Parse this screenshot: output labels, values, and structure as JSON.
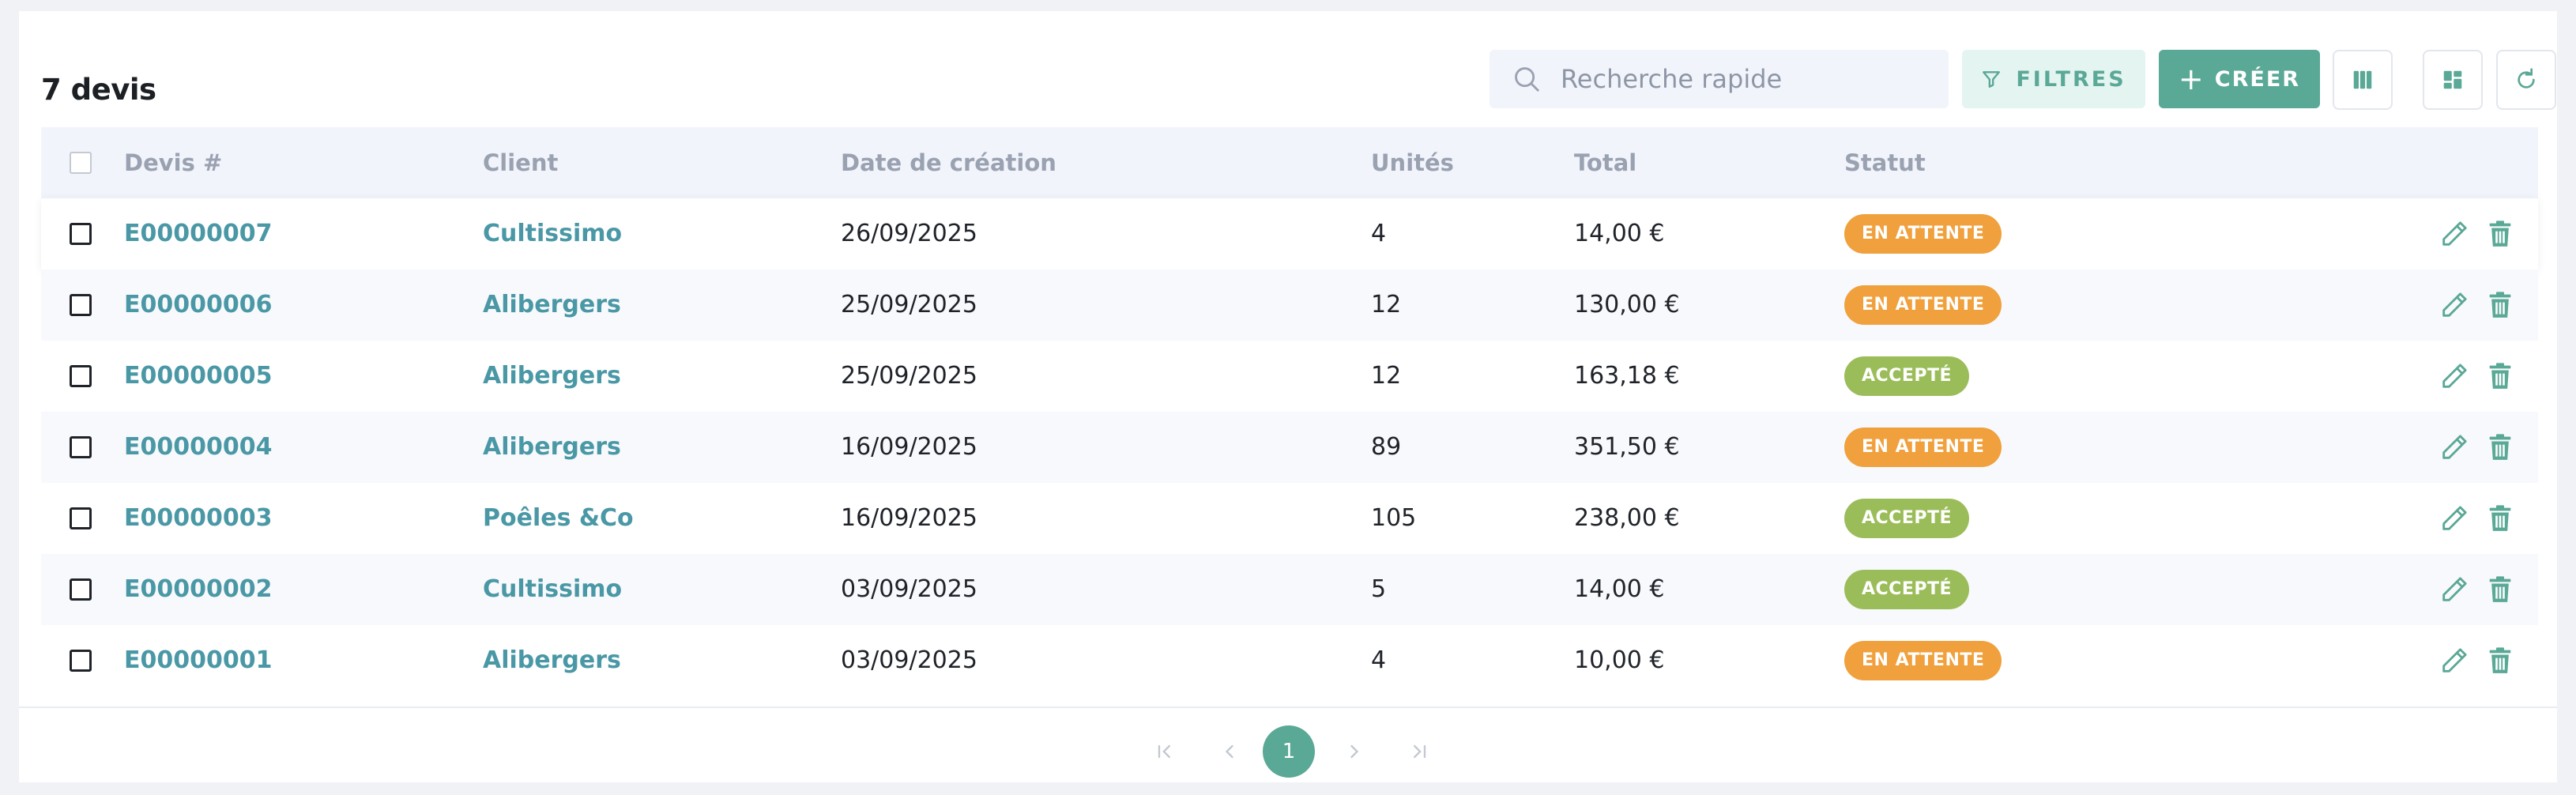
{
  "header": {
    "title": "7 devis"
  },
  "search": {
    "placeholder": "Recherche rapide"
  },
  "toolbar": {
    "filters_label": "FILTRES",
    "create_label": "CRÉER",
    "accent": "#5aa896",
    "icons": [
      "columns-icon",
      "layout-grid-icon",
      "refresh-icon"
    ]
  },
  "table": {
    "columns": [
      "Devis #",
      "Client",
      "Date de création",
      "Unités",
      "Total",
      "Statut"
    ],
    "rows": [
      {
        "id": "E00000007",
        "client": "Cultissimo",
        "date": "26/09/2025",
        "units": "4",
        "total": "14,00 €",
        "status": "EN ATTENTE",
        "status_color": "#f0a03c"
      },
      {
        "id": "E00000006",
        "client": "Alibergers",
        "date": "25/09/2025",
        "units": "12",
        "total": "130,00 €",
        "status": "EN ATTENTE",
        "status_color": "#f0a03c"
      },
      {
        "id": "E00000005",
        "client": "Alibergers",
        "date": "25/09/2025",
        "units": "12",
        "total": "163,18 €",
        "status": "ACCEPTÉ",
        "status_color": "#9bbd59"
      },
      {
        "id": "E00000004",
        "client": "Alibergers",
        "date": "16/09/2025",
        "units": "89",
        "total": "351,50 €",
        "status": "EN ATTENTE",
        "status_color": "#f0a03c"
      },
      {
        "id": "E00000003",
        "client": "Poêles &Co",
        "date": "16/09/2025",
        "units": "105",
        "total": "238,00 €",
        "status": "ACCEPTÉ",
        "status_color": "#9bbd59"
      },
      {
        "id": "E00000002",
        "client": "Cultissimo",
        "date": "03/09/2025",
        "units": "5",
        "total": "14,00 €",
        "status": "ACCEPTÉ",
        "status_color": "#9bbd59"
      },
      {
        "id": "E00000001",
        "client": "Alibergers",
        "date": "03/09/2025",
        "units": "4",
        "total": "10,00 €",
        "status": "EN ATTENTE",
        "status_color": "#f0a03c"
      }
    ],
    "row_action_icons": [
      "edit-pencil-icon",
      "trash-icon"
    ]
  },
  "pagination": {
    "current_page": "1"
  }
}
